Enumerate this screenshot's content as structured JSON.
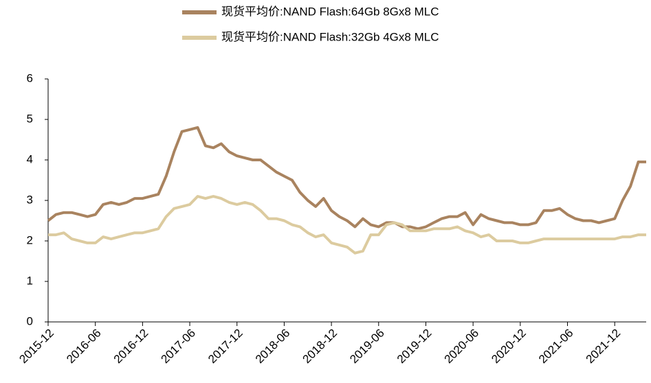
{
  "chart_data": {
    "type": "line",
    "x": [
      "2015-12",
      "2016-01",
      "2016-02",
      "2016-03",
      "2016-04",
      "2016-05",
      "2016-06",
      "2016-07",
      "2016-08",
      "2016-09",
      "2016-10",
      "2016-11",
      "2016-12",
      "2017-01",
      "2017-02",
      "2017-03",
      "2017-04",
      "2017-05",
      "2017-06",
      "2017-07",
      "2017-08",
      "2017-09",
      "2017-10",
      "2017-11",
      "2017-12",
      "2018-01",
      "2018-02",
      "2018-03",
      "2018-04",
      "2018-05",
      "2018-06",
      "2018-07",
      "2018-08",
      "2018-09",
      "2018-10",
      "2018-11",
      "2018-12",
      "2019-01",
      "2019-02",
      "2019-03",
      "2019-04",
      "2019-05",
      "2019-06",
      "2019-07",
      "2019-08",
      "2019-09",
      "2019-10",
      "2019-11",
      "2019-12",
      "2020-01",
      "2020-02",
      "2020-03",
      "2020-04",
      "2020-05",
      "2020-06",
      "2020-07",
      "2020-08",
      "2020-09",
      "2020-10",
      "2020-11",
      "2020-12",
      "2021-01",
      "2021-02",
      "2021-03",
      "2021-04",
      "2021-05",
      "2021-06",
      "2021-07",
      "2021-08",
      "2021-09",
      "2021-10",
      "2021-11",
      "2021-12",
      "2022-01",
      "2022-02",
      "2022-03",
      "2022-04"
    ],
    "series": [
      {
        "name": "现货平均价:NAND Flash:64Gb 8Gx8 MLC",
        "color": "#a9835f",
        "values": [
          2.5,
          2.65,
          2.7,
          2.7,
          2.65,
          2.6,
          2.65,
          2.9,
          2.95,
          2.9,
          2.95,
          3.05,
          3.05,
          3.1,
          3.15,
          3.6,
          4.2,
          4.7,
          4.75,
          4.8,
          4.35,
          4.3,
          4.4,
          4.2,
          4.1,
          4.05,
          4.0,
          4.0,
          3.85,
          3.7,
          3.6,
          3.5,
          3.2,
          3.0,
          2.85,
          3.05,
          2.75,
          2.6,
          2.5,
          2.35,
          2.55,
          2.4,
          2.35,
          2.45,
          2.45,
          2.35,
          2.35,
          2.3,
          2.35,
          2.45,
          2.55,
          2.6,
          2.6,
          2.7,
          2.4,
          2.65,
          2.55,
          2.5,
          2.45,
          2.45,
          2.4,
          2.4,
          2.45,
          2.75,
          2.75,
          2.8,
          2.65,
          2.55,
          2.5,
          2.5,
          2.45,
          2.5,
          2.55,
          3.0,
          3.35,
          3.95,
          3.95
        ]
      },
      {
        "name": "现货平均价:NAND Flash:32Gb 4Gx8 MLC",
        "color": "#dccb9f",
        "values": [
          2.15,
          2.15,
          2.2,
          2.05,
          2.0,
          1.95,
          1.95,
          2.1,
          2.05,
          2.1,
          2.15,
          2.2,
          2.2,
          2.25,
          2.3,
          2.6,
          2.8,
          2.85,
          2.9,
          3.1,
          3.05,
          3.1,
          3.05,
          2.95,
          2.9,
          2.95,
          2.9,
          2.75,
          2.55,
          2.55,
          2.5,
          2.4,
          2.35,
          2.2,
          2.1,
          2.15,
          1.95,
          1.9,
          1.85,
          1.7,
          1.75,
          2.15,
          2.15,
          2.4,
          2.45,
          2.4,
          2.25,
          2.25,
          2.25,
          2.3,
          2.3,
          2.3,
          2.35,
          2.25,
          2.2,
          2.1,
          2.15,
          2.0,
          2.0,
          2.0,
          1.95,
          1.95,
          2.0,
          2.05,
          2.05,
          2.05,
          2.05,
          2.05,
          2.05,
          2.05,
          2.05,
          2.05,
          2.05,
          2.1,
          2.1,
          2.15,
          2.15
        ]
      }
    ],
    "xlim": [
      "2015-12",
      "2022-04"
    ],
    "xticks": [
      "2015-12",
      "2016-06",
      "2016-12",
      "2017-06",
      "2017-12",
      "2018-06",
      "2018-12",
      "2019-06",
      "2019-12",
      "2020-06",
      "2020-12",
      "2021-06",
      "2021-12"
    ],
    "ylim": [
      0,
      6
    ],
    "yticks": [
      0,
      1,
      2,
      3,
      4,
      5,
      6
    ],
    "legend": "top"
  }
}
